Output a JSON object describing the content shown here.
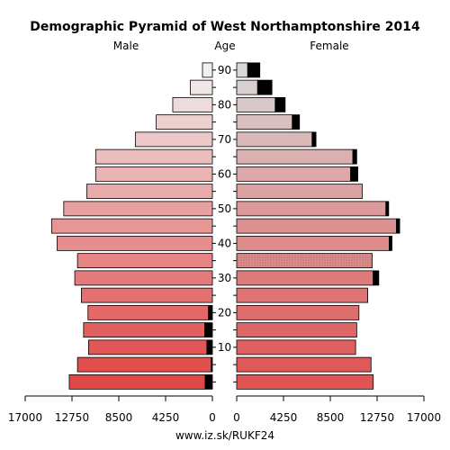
{
  "chart_data": {
    "type": "bar",
    "title": "Demographic Pyramid of West Northamptonshire 2014",
    "male_label": "Male",
    "age_label": "Age",
    "female_label": "Female",
    "source": "www.iz.sk/RUKF24",
    "xlim": [
      0,
      17000
    ],
    "x_ticks": [
      {
        "value": 17000,
        "label": "17000"
      },
      {
        "value": 12750,
        "label": "12750"
      },
      {
        "value": 8500,
        "label": "8500"
      },
      {
        "value": 4250,
        "label": "4250"
      },
      {
        "value": 0,
        "label": "0"
      }
    ],
    "age_ticks": [
      {
        "value": 10,
        "label": "10"
      },
      {
        "value": 20,
        "label": "20"
      },
      {
        "value": 30,
        "label": "30"
      },
      {
        "value": 40,
        "label": "40"
      },
      {
        "value": 50,
        "label": "50"
      },
      {
        "value": 60,
        "label": "60"
      },
      {
        "value": 70,
        "label": "70"
      },
      {
        "value": 80,
        "label": "80"
      },
      {
        "value": 90,
        "label": "90"
      }
    ],
    "age_groups": [
      "0-4",
      "5-9",
      "10-14",
      "15-19",
      "20-24",
      "25-29",
      "30-34",
      "35-39",
      "40-44",
      "45-49",
      "50-54",
      "55-59",
      "60-64",
      "65-69",
      "70-74",
      "75-79",
      "80-84",
      "85-89",
      "90+"
    ],
    "male_total": [
      13000,
      12250,
      11250,
      11700,
      11300,
      11900,
      12500,
      12250,
      14100,
      14600,
      13500,
      11400,
      10600,
      10600,
      7000,
      5100,
      3600,
      2000,
      900
    ],
    "male_extra": [
      650,
      100,
      500,
      700,
      350,
      0,
      0,
      0,
      0,
      0,
      0,
      0,
      0,
      0,
      0,
      0,
      0,
      0,
      0
    ],
    "female_total": [
      12400,
      12200,
      10800,
      10900,
      11100,
      11900,
      12900,
      12300,
      14100,
      14800,
      13800,
      11400,
      11000,
      10900,
      7200,
      5700,
      4400,
      3200,
      2100
    ],
    "female_extra": [
      0,
      0,
      0,
      0,
      0,
      0,
      500,
      0,
      250,
      300,
      250,
      0,
      650,
      350,
      350,
      650,
      900,
      1300,
      1100
    ],
    "colors": {
      "male_young": "#e04848",
      "male_old": "#f0f0f0",
      "female_young": "#e05454",
      "female_old": "#d8d8d8",
      "extra": "#000000"
    }
  }
}
